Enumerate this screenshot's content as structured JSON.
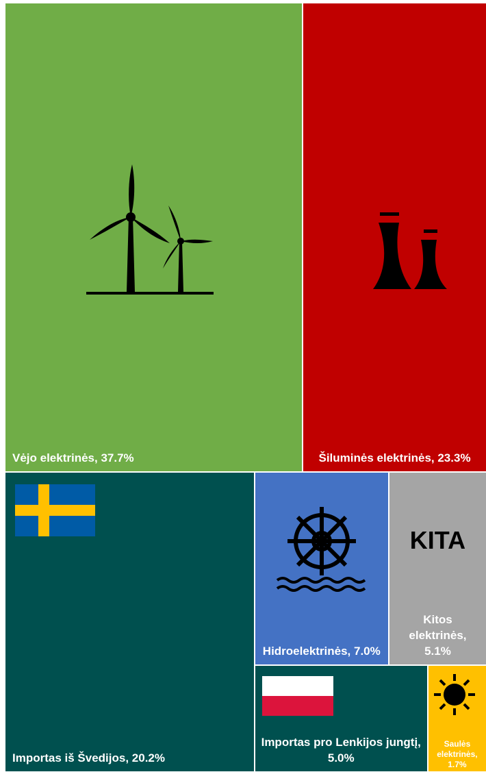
{
  "chart_data": {
    "type": "treemap",
    "categories": [
      "Vėjo elektrinės, 37.7%",
      "Šiluminės elektrinės, 23.3%",
      "Importas iš Švedijos, 20.2%",
      "Hidroelektrinės, 7.0%",
      "Kitos elektrinės, 5.1%",
      "Importas pro Lenkijos jungtį, 5.0%",
      "Saulės elektrinės, 1.7%"
    ],
    "values": [
      37.7,
      23.3,
      20.2,
      7.0,
      5.1,
      5.0,
      1.7
    ],
    "colors": [
      "#70ad47",
      "#c00000",
      "#00504f",
      "#4472c4",
      "#a5a5a5",
      "#00504f",
      "#ffc000"
    ],
    "icon_text": "KITA"
  }
}
